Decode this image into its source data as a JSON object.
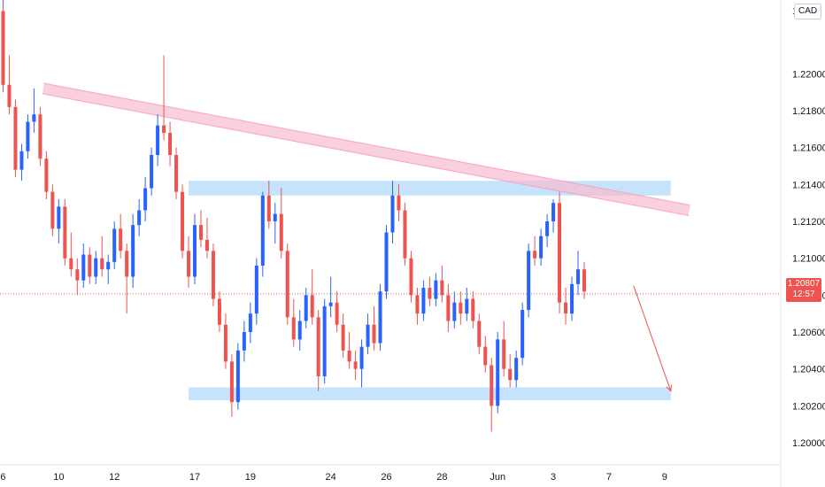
{
  "chart_data": {
    "type": "candlestick",
    "instrument_label": "CAD",
    "y_ticks": [
      "1.20000",
      "1.20200",
      "1.20400",
      "1.20600",
      "1.20800",
      "1.21000",
      "1.21200",
      "1.21400",
      "1.21600",
      "1.21800",
      "1.22000"
    ],
    "y_top_label": "1.2",
    "ylim": [
      1.1988,
      1.224
    ],
    "x_ticks": [
      {
        "label": "6",
        "pos": 0.5
      },
      {
        "label": "10",
        "pos": 9.5
      },
      {
        "label": "12",
        "pos": 18.5
      },
      {
        "label": "17",
        "pos": 31.5
      },
      {
        "label": "19",
        "pos": 40.5
      },
      {
        "label": "24",
        "pos": 53.5
      },
      {
        "label": "26",
        "pos": 62.5
      },
      {
        "label": "28",
        "pos": 71.5
      },
      {
        "label": "Jun",
        "pos": 80.5
      },
      {
        "label": "3",
        "pos": 89.5
      },
      {
        "label": "7",
        "pos": 98.5
      },
      {
        "label": "9",
        "pos": 107.5
      }
    ],
    "x_range": [
      0,
      126
    ],
    "current_price": "1.20807",
    "countdown": "12:57",
    "colors": {
      "up": "#2962ff",
      "down": "#ef5350",
      "resistance_zone": "#bbdefb",
      "trendline": "#f8bbd0",
      "forecast_arrow": "#ef5350"
    },
    "resistance_zone": {
      "x_start": 30.5,
      "x_end": 108.5,
      "y_low": 1.2134,
      "y_high": 1.2142
    },
    "support_zone": {
      "x_start": 30.5,
      "x_end": 108.5,
      "y_low": 1.2023,
      "y_high": 1.203
    },
    "trendline": {
      "x1": 7,
      "y1": 1.2192,
      "x2": 111.5,
      "y2": 1.2126
    },
    "forecast_arrow": {
      "x1": 102.5,
      "y1": 1.2085,
      "x2": 108.5,
      "y2": 1.2028
    },
    "candles": [
      [
        1.2234,
        1.226,
        1.219,
        1.2194
      ],
      [
        1.2194,
        1.221,
        1.2178,
        1.2182
      ],
      [
        1.2182,
        1.2186,
        1.2144,
        1.2148
      ],
      [
        1.2148,
        1.2162,
        1.2142,
        1.2158
      ],
      [
        1.2158,
        1.2178,
        1.2154,
        1.2174
      ],
      [
        1.2174,
        1.2192,
        1.2168,
        1.2178
      ],
      [
        1.2178,
        1.2182,
        1.215,
        1.2154
      ],
      [
        1.2154,
        1.2158,
        1.2132,
        1.2136
      ],
      [
        1.2136,
        1.214,
        1.2112,
        1.2116
      ],
      [
        1.2116,
        1.2132,
        1.2108,
        1.2128
      ],
      [
        1.2128,
        1.2132,
        1.2096,
        1.21
      ],
      [
        1.21,
        1.2114,
        1.209,
        1.2094
      ],
      [
        1.2094,
        1.21,
        1.208,
        1.2088
      ],
      [
        1.2088,
        1.2108,
        1.2084,
        1.2102
      ],
      [
        1.2102,
        1.2106,
        1.2086,
        1.209
      ],
      [
        1.209,
        1.2104,
        1.2086,
        1.21
      ],
      [
        1.21,
        1.2112,
        1.209,
        1.2094
      ],
      [
        1.2094,
        1.2102,
        1.2086,
        1.2098
      ],
      [
        1.2098,
        1.212,
        1.2094,
        1.2116
      ],
      [
        1.2116,
        1.2124,
        1.21,
        1.2104
      ],
      [
        1.2104,
        1.2108,
        1.207,
        1.209
      ],
      [
        1.209,
        1.2124,
        1.2084,
        1.2118
      ],
      [
        1.2118,
        1.2132,
        1.2112,
        1.2126
      ],
      [
        1.2126,
        1.2144,
        1.212,
        1.2138
      ],
      [
        1.2138,
        1.216,
        1.2134,
        1.2156
      ],
      [
        1.2156,
        1.2178,
        1.215,
        1.2172
      ],
      [
        1.2172,
        1.221,
        1.2164,
        1.2168
      ],
      [
        1.2168,
        1.2174,
        1.215,
        1.2156
      ],
      [
        1.2156,
        1.216,
        1.2132,
        1.2136
      ],
      [
        1.2136,
        1.214,
        1.21,
        1.2104
      ],
      [
        1.2104,
        1.2112,
        1.2084,
        1.209
      ],
      [
        1.209,
        1.2124,
        1.2086,
        1.2118
      ],
      [
        1.2118,
        1.2126,
        1.2106,
        1.211
      ],
      [
        1.211,
        1.2122,
        1.21,
        1.2104
      ],
      [
        1.2104,
        1.2108,
        1.2074,
        1.2078
      ],
      [
        1.2078,
        1.2082,
        1.206,
        1.2064
      ],
      [
        1.2064,
        1.207,
        1.204,
        1.2044
      ],
      [
        1.2044,
        1.2048,
        1.2014,
        1.2022
      ],
      [
        1.2022,
        1.2054,
        1.2018,
        1.205
      ],
      [
        1.205,
        1.2066,
        1.2044,
        1.206
      ],
      [
        1.206,
        1.2076,
        1.2054,
        1.207
      ],
      [
        1.207,
        1.21,
        1.2064,
        1.2096
      ],
      [
        1.2096,
        1.2136,
        1.209,
        1.2134
      ],
      [
        1.2134,
        1.2142,
        1.2116,
        1.212
      ],
      [
        1.212,
        1.213,
        1.2108,
        1.2124
      ],
      [
        1.2124,
        1.2138,
        1.21,
        1.2104
      ],
      [
        1.2104,
        1.2108,
        1.2064,
        1.2068
      ],
      [
        1.2068,
        1.2078,
        1.2052,
        1.2056
      ],
      [
        1.2056,
        1.2072,
        1.205,
        1.2066
      ],
      [
        1.2066,
        1.2084,
        1.2062,
        1.208
      ],
      [
        1.208,
        1.2094,
        1.2064,
        1.2068
      ],
      [
        1.2068,
        1.2072,
        1.2028,
        1.2036
      ],
      [
        1.2036,
        1.2078,
        1.2032,
        1.2074
      ],
      [
        1.2074,
        1.209,
        1.2068,
        1.2076
      ],
      [
        1.2076,
        1.2082,
        1.206,
        1.2064
      ],
      [
        1.2064,
        1.207,
        1.2046,
        1.205
      ],
      [
        1.205,
        1.206,
        1.204,
        1.2044
      ],
      [
        1.2044,
        1.205,
        1.2034,
        1.204
      ],
      [
        1.204,
        1.2056,
        1.203,
        1.2052
      ],
      [
        1.2052,
        1.207,
        1.2048,
        1.2064
      ],
      [
        1.2064,
        1.2074,
        1.205,
        1.2054
      ],
      [
        1.2054,
        1.2086,
        1.205,
        1.2082
      ],
      [
        1.2082,
        1.2118,
        1.2078,
        1.2114
      ],
      [
        1.2114,
        1.2142,
        1.2108,
        1.2134
      ],
      [
        1.2134,
        1.214,
        1.212,
        1.2126
      ],
      [
        1.2126,
        1.213,
        1.2096,
        1.21
      ],
      [
        1.21,
        1.2104,
        1.2076,
        1.208
      ],
      [
        1.208,
        1.2084,
        1.2064,
        1.207
      ],
      [
        1.207,
        1.2088,
        1.2066,
        1.2084
      ],
      [
        1.2084,
        1.209,
        1.2074,
        1.2078
      ],
      [
        1.2078,
        1.2092,
        1.2074,
        1.2088
      ],
      [
        1.2088,
        1.2096,
        1.2076,
        1.208
      ],
      [
        1.208,
        1.2086,
        1.206,
        1.2066
      ],
      [
        1.2066,
        1.2082,
        1.2062,
        1.2076
      ],
      [
        1.2076,
        1.2082,
        1.2064,
        1.207
      ],
      [
        1.207,
        1.2084,
        1.2066,
        1.2078
      ],
      [
        1.2078,
        1.2082,
        1.2062,
        1.2066
      ],
      [
        1.2066,
        1.207,
        1.2048,
        1.2052
      ],
      [
        1.2052,
        1.2058,
        1.2038,
        1.2042
      ],
      [
        1.2042,
        1.2046,
        1.2006,
        1.202
      ],
      [
        1.202,
        1.206,
        1.2016,
        1.2056
      ],
      [
        1.2056,
        1.2066,
        1.2036,
        1.204
      ],
      [
        1.204,
        1.2048,
        1.203,
        1.2034
      ],
      [
        1.2034,
        1.205,
        1.203,
        1.2046
      ],
      [
        1.2046,
        1.2076,
        1.2042,
        1.2072
      ],
      [
        1.2072,
        1.2108,
        1.2068,
        1.2104
      ],
      [
        1.2104,
        1.2112,
        1.2096,
        1.21
      ],
      [
        1.21,
        1.2116,
        1.2096,
        1.2112
      ],
      [
        1.2112,
        1.2124,
        1.2106,
        1.212
      ],
      [
        1.212,
        1.2132,
        1.2114,
        1.213
      ],
      [
        1.213,
        1.2136,
        1.207,
        1.2076
      ],
      [
        1.2076,
        1.2084,
        1.2064,
        1.207
      ],
      [
        1.207,
        1.209,
        1.2066,
        1.2086
      ],
      [
        1.2086,
        1.2104,
        1.208,
        1.2094
      ],
      [
        1.2094,
        1.2098,
        1.2078,
        1.2082
      ]
    ]
  }
}
